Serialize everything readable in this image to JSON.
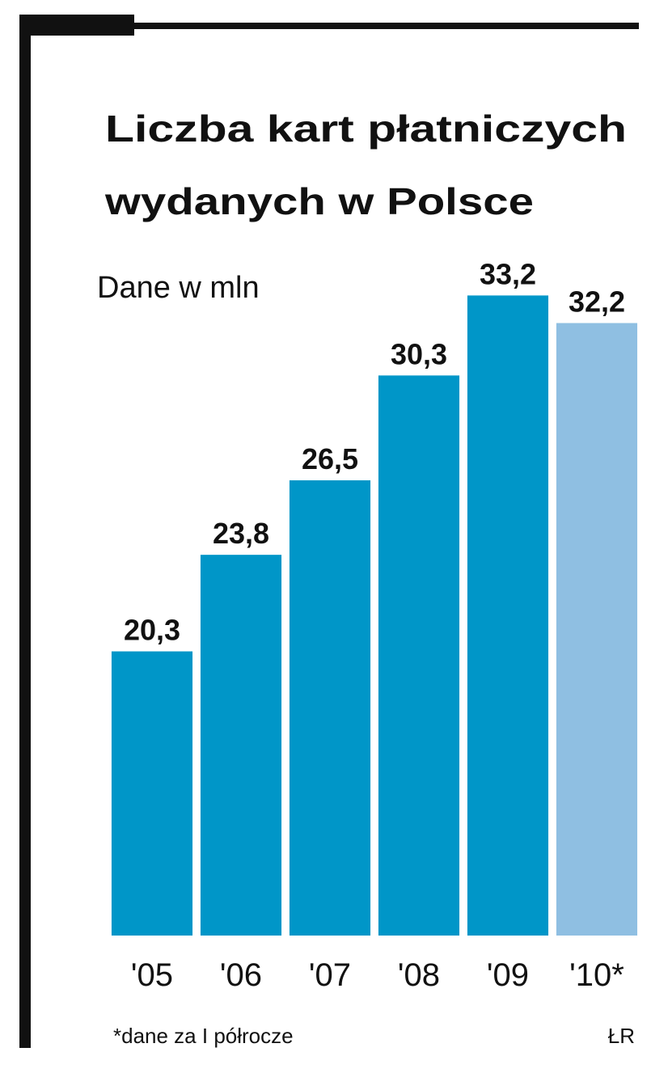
{
  "chart_data": {
    "type": "bar",
    "title": [
      "Liczba kart płatniczych",
      "wydanych w Polsce"
    ],
    "subtitle": "Dane w mln",
    "categories": [
      "'05",
      "'06",
      "'07",
      "'08",
      "'09",
      "'10*"
    ],
    "values": [
      20.3,
      23.8,
      26.5,
      30.3,
      33.2,
      32.2
    ],
    "value_labels": [
      "20,3",
      "23,8",
      "26,5",
      "30,3",
      "33,2",
      "32,2"
    ],
    "colors": [
      "#0096c8",
      "#0096c8",
      "#0096c8",
      "#0096c8",
      "#0096c8",
      "#8fbfe2"
    ],
    "ylim": [
      10,
      35
    ],
    "footnote": "*dane za I półrocze",
    "source": "ŁR"
  }
}
